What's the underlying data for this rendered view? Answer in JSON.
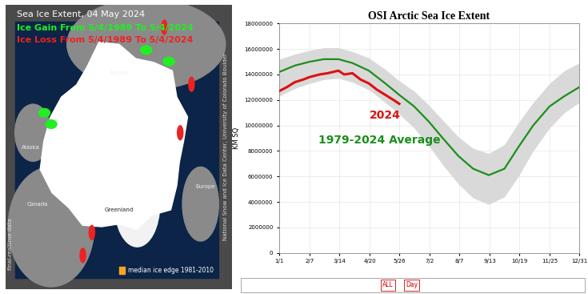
{
  "map": {
    "title": "Sea Ice Extent, 04 May 2024",
    "gain": {
      "text": "Ice Gain From 5/4/1989 To 5/4/2024",
      "color": "#22ee22"
    },
    "loss": {
      "text": "Ice Loss From 5/4/1989 To 5/4/2024",
      "color": "#ee2222"
    },
    "places": [
      "Russia",
      "Alaska",
      "Canada",
      "Greenland",
      "Europe"
    ],
    "median_legend": {
      "text": "median ice edge 1981-2010",
      "color": "#f5a623"
    },
    "credit": "National Snow and Ice Data Center, University of Colorado Boulder",
    "data_note": "final-realtime data"
  },
  "chart_data": {
    "type": "line",
    "title": "OSI Arctic Sea Ice Extent",
    "y_label": "KM SQ",
    "xlim": [
      1,
      366
    ],
    "xticks": [
      {
        "value": 1,
        "label": "1/1"
      },
      {
        "value": 38,
        "label": "2/7"
      },
      {
        "value": 74,
        "label": "3/14"
      },
      {
        "value": 111,
        "label": "4/20"
      },
      {
        "value": 147,
        "label": "5/26"
      },
      {
        "value": 184,
        "label": "7/2"
      },
      {
        "value": 220,
        "label": "8/7"
      },
      {
        "value": 257,
        "label": "9/13"
      },
      {
        "value": 293,
        "label": "10/19"
      },
      {
        "value": 330,
        "label": "11/25"
      },
      {
        "value": 366,
        "label": "12/31"
      }
    ],
    "ylim": [
      0,
      18000000
    ],
    "yticks": [
      0,
      2000000,
      4000000,
      6000000,
      8000000,
      10000000,
      12000000,
      14000000,
      16000000,
      18000000
    ],
    "grid": true,
    "series": [
      {
        "type": "area",
        "color": "#d9d9d9",
        "x": [
          1,
          20,
          38,
          55,
          73,
          90,
          110,
          130,
          147,
          165,
          183,
          200,
          219,
          237,
          256,
          275,
          292,
          310,
          330,
          348,
          366
        ],
        "low": [
          12300000,
          12900000,
          13300000,
          13600000,
          13700000,
          13400000,
          12800000,
          11800000,
          10900000,
          9800000,
          8400000,
          6900000,
          5400000,
          4300000,
          3800000,
          4400000,
          6000000,
          8000000,
          9800000,
          11000000,
          11800000
        ],
        "high": [
          15200000,
          15600000,
          15900000,
          16100000,
          16100000,
          15800000,
          15300000,
          14400000,
          13500000,
          12700000,
          11600000,
          10400000,
          9100000,
          8200000,
          7800000,
          8500000,
          10200000,
          11800000,
          13300000,
          14300000,
          14900000
        ]
      },
      {
        "type": "line",
        "name": "1979-2024 Average",
        "color": "#1a8f1a",
        "line_style": "solid",
        "x": [
          1,
          20,
          38,
          55,
          73,
          90,
          110,
          130,
          147,
          165,
          183,
          200,
          219,
          237,
          256,
          275,
          292,
          310,
          330,
          348,
          366
        ],
        "values": [
          14200000,
          14700000,
          15000000,
          15200000,
          15200000,
          14900000,
          14300000,
          13300000,
          12400000,
          11500000,
          10300000,
          9000000,
          7600000,
          6600000,
          6100000,
          6600000,
          8300000,
          10000000,
          11500000,
          12300000,
          13000000
        ]
      },
      {
        "type": "line",
        "name": "2024",
        "color": "#dd1111",
        "line_style": "solid",
        "x": [
          1,
          10,
          20,
          30,
          38,
          50,
          60,
          73,
          80,
          90,
          100,
          110,
          120,
          130,
          140,
          147
        ],
        "values": [
          12700000,
          13000000,
          13400000,
          13600000,
          13800000,
          14000000,
          14100000,
          14300000,
          14000000,
          14100000,
          13600000,
          13300000,
          12800000,
          12400000,
          12000000,
          11700000
        ]
      }
    ]
  },
  "toolbar": {
    "buttons": [
      "ALL",
      "Day"
    ]
  }
}
